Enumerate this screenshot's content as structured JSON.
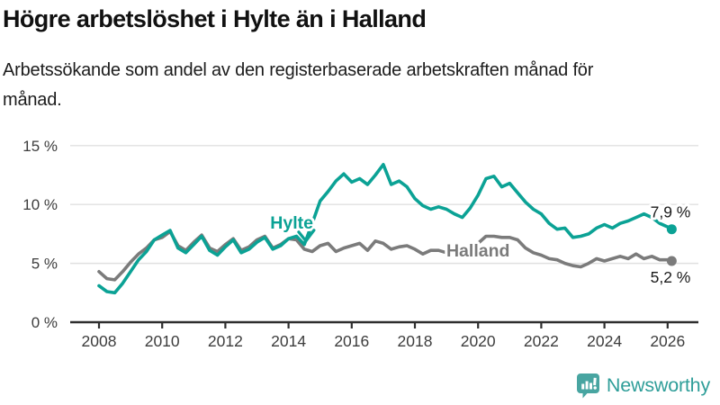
{
  "header": {
    "title": "Högre arbetslöshet i Hylte än i Halland",
    "subtitle": "Arbetssökande som andel av den registerbaserade arbetskraften månad för månad."
  },
  "footer": {
    "brand": "Newsworthy",
    "logo_icon": "newsworthy-speech-bubble-bar-chart-icon"
  },
  "colors": {
    "hylte": "#0ba295",
    "halland": "#7b7b7b",
    "grid": "#e0e0e0",
    "axis": "#2e2e2e",
    "axis_text": "#3d3d3d",
    "value_text": "#1a1a1a",
    "brand_text": "#2f9e99",
    "brand_icon": "#48a5a1"
  },
  "chart_data": {
    "type": "line",
    "title": "Högre arbetslöshet i Hylte än i Halland",
    "xlabel": "",
    "ylabel": "",
    "x_unit": "decimal_year",
    "xlim": [
      2007.8,
      2027.0
    ],
    "ylim": [
      0,
      15
    ],
    "grid": "horizontal",
    "legend_position": "inline-labels",
    "y_ticks": [
      [
        0,
        "0 %"
      ],
      [
        5,
        "5 %"
      ],
      [
        10,
        "10 %"
      ],
      [
        15,
        "15 %"
      ]
    ],
    "x_ticks": [
      [
        2008,
        "2008"
      ],
      [
        2010,
        "2010"
      ],
      [
        2012,
        "2012"
      ],
      [
        2014,
        "2014"
      ],
      [
        2016,
        "2016"
      ],
      [
        2018,
        "2018"
      ],
      [
        2020,
        "2020"
      ],
      [
        2022,
        "2022"
      ],
      [
        2024,
        "2024"
      ],
      [
        2026,
        "2026"
      ]
    ],
    "series": [
      {
        "name": "Hylte",
        "color": "#0ba295",
        "end_label": "7,9 %",
        "end_label_position": "above",
        "points": [
          [
            2008.0,
            3.1
          ],
          [
            2008.25,
            2.6
          ],
          [
            2008.5,
            2.5
          ],
          [
            2008.75,
            3.3
          ],
          [
            2009.0,
            4.3
          ],
          [
            2009.25,
            5.3
          ],
          [
            2009.5,
            6.0
          ],
          [
            2009.75,
            7.0
          ],
          [
            2010.0,
            7.4
          ],
          [
            2010.25,
            7.8
          ],
          [
            2010.5,
            6.3
          ],
          [
            2010.75,
            5.9
          ],
          [
            2011.0,
            6.6
          ],
          [
            2011.25,
            7.3
          ],
          [
            2011.5,
            6.1
          ],
          [
            2011.75,
            5.7
          ],
          [
            2012.0,
            6.4
          ],
          [
            2012.25,
            7.0
          ],
          [
            2012.5,
            5.9
          ],
          [
            2012.75,
            6.2
          ],
          [
            2013.0,
            6.8
          ],
          [
            2013.25,
            7.2
          ],
          [
            2013.5,
            6.2
          ],
          [
            2013.75,
            6.5
          ],
          [
            2014.0,
            7.1
          ],
          [
            2014.25,
            7.3
          ],
          [
            2014.5,
            6.6
          ],
          [
            2014.75,
            8.4
          ],
          [
            2015.0,
            10.3
          ],
          [
            2015.25,
            11.1
          ],
          [
            2015.5,
            12.0
          ],
          [
            2015.75,
            12.6
          ],
          [
            2016.0,
            11.9
          ],
          [
            2016.25,
            12.2
          ],
          [
            2016.5,
            11.7
          ],
          [
            2016.75,
            12.5
          ],
          [
            2017.0,
            13.4
          ],
          [
            2017.25,
            11.7
          ],
          [
            2017.5,
            12.0
          ],
          [
            2017.75,
            11.5
          ],
          [
            2018.0,
            10.5
          ],
          [
            2018.25,
            9.9
          ],
          [
            2018.5,
            9.6
          ],
          [
            2018.75,
            9.8
          ],
          [
            2019.0,
            9.6
          ],
          [
            2019.25,
            9.2
          ],
          [
            2019.5,
            8.9
          ],
          [
            2019.75,
            9.7
          ],
          [
            2020.0,
            10.8
          ],
          [
            2020.25,
            12.2
          ],
          [
            2020.5,
            12.4
          ],
          [
            2020.75,
            11.5
          ],
          [
            2021.0,
            11.8
          ],
          [
            2021.25,
            11.0
          ],
          [
            2021.5,
            10.2
          ],
          [
            2021.75,
            9.6
          ],
          [
            2022.0,
            9.2
          ],
          [
            2022.25,
            8.4
          ],
          [
            2022.5,
            7.9
          ],
          [
            2022.75,
            8.0
          ],
          [
            2023.0,
            7.2
          ],
          [
            2023.25,
            7.3
          ],
          [
            2023.5,
            7.5
          ],
          [
            2023.75,
            8.0
          ],
          [
            2024.0,
            8.3
          ],
          [
            2024.25,
            8.0
          ],
          [
            2024.5,
            8.4
          ],
          [
            2024.75,
            8.6
          ],
          [
            2025.0,
            8.9
          ],
          [
            2025.25,
            9.2
          ],
          [
            2025.5,
            8.9
          ],
          [
            2025.75,
            8.4
          ],
          [
            2026.0,
            8.1
          ],
          [
            2026.13,
            7.9
          ]
        ]
      },
      {
        "name": "Halland",
        "color": "#7b7b7b",
        "end_label": "5,2 %",
        "end_label_position": "below",
        "points": [
          [
            2008.0,
            4.3
          ],
          [
            2008.25,
            3.7
          ],
          [
            2008.5,
            3.6
          ],
          [
            2008.75,
            4.3
          ],
          [
            2009.0,
            5.1
          ],
          [
            2009.25,
            5.8
          ],
          [
            2009.5,
            6.3
          ],
          [
            2009.75,
            7.0
          ],
          [
            2010.0,
            7.2
          ],
          [
            2010.25,
            7.7
          ],
          [
            2010.5,
            6.5
          ],
          [
            2010.75,
            6.1
          ],
          [
            2011.0,
            6.8
          ],
          [
            2011.25,
            7.4
          ],
          [
            2011.5,
            6.3
          ],
          [
            2011.75,
            6.0
          ],
          [
            2012.0,
            6.6
          ],
          [
            2012.25,
            7.1
          ],
          [
            2012.5,
            6.1
          ],
          [
            2012.75,
            6.4
          ],
          [
            2013.0,
            7.0
          ],
          [
            2013.25,
            7.3
          ],
          [
            2013.5,
            6.3
          ],
          [
            2013.75,
            6.6
          ],
          [
            2014.0,
            7.1
          ],
          [
            2014.25,
            7.0
          ],
          [
            2014.5,
            6.2
          ],
          [
            2014.75,
            6.0
          ],
          [
            2015.0,
            6.5
          ],
          [
            2015.25,
            6.7
          ],
          [
            2015.5,
            6.0
          ],
          [
            2015.75,
            6.3
          ],
          [
            2016.0,
            6.5
          ],
          [
            2016.25,
            6.7
          ],
          [
            2016.5,
            6.1
          ],
          [
            2016.75,
            6.9
          ],
          [
            2017.0,
            6.7
          ],
          [
            2017.25,
            6.2
          ],
          [
            2017.5,
            6.4
          ],
          [
            2017.75,
            6.5
          ],
          [
            2018.0,
            6.2
          ],
          [
            2018.25,
            5.8
          ],
          [
            2018.5,
            6.1
          ],
          [
            2018.75,
            6.1
          ],
          [
            2019.0,
            5.9
          ],
          [
            2019.25,
            5.7
          ],
          [
            2019.5,
            5.9
          ],
          [
            2019.75,
            6.2
          ],
          [
            2020.0,
            6.7
          ],
          [
            2020.25,
            7.3
          ],
          [
            2020.5,
            7.3
          ],
          [
            2020.75,
            7.2
          ],
          [
            2021.0,
            7.2
          ],
          [
            2021.25,
            7.0
          ],
          [
            2021.5,
            6.3
          ],
          [
            2021.75,
            5.9
          ],
          [
            2022.0,
            5.7
          ],
          [
            2022.25,
            5.4
          ],
          [
            2022.5,
            5.3
          ],
          [
            2022.75,
            5.0
          ],
          [
            2023.0,
            4.8
          ],
          [
            2023.25,
            4.7
          ],
          [
            2023.5,
            5.0
          ],
          [
            2023.75,
            5.4
          ],
          [
            2024.0,
            5.2
          ],
          [
            2024.25,
            5.4
          ],
          [
            2024.5,
            5.6
          ],
          [
            2024.75,
            5.4
          ],
          [
            2025.0,
            5.8
          ],
          [
            2025.25,
            5.4
          ],
          [
            2025.5,
            5.6
          ],
          [
            2025.75,
            5.3
          ],
          [
            2026.0,
            5.3
          ],
          [
            2026.13,
            5.2
          ]
        ]
      }
    ],
    "annotations": [
      {
        "text": "Hylte",
        "year": 2014.1,
        "value": 7.95,
        "color": "#0ba295",
        "arrow": {
          "year": 2014.55,
          "value": 6.9
        }
      },
      {
        "text": "Halland",
        "year": 2020.0,
        "value": 5.6,
        "color": "#7b7b7b"
      }
    ]
  }
}
